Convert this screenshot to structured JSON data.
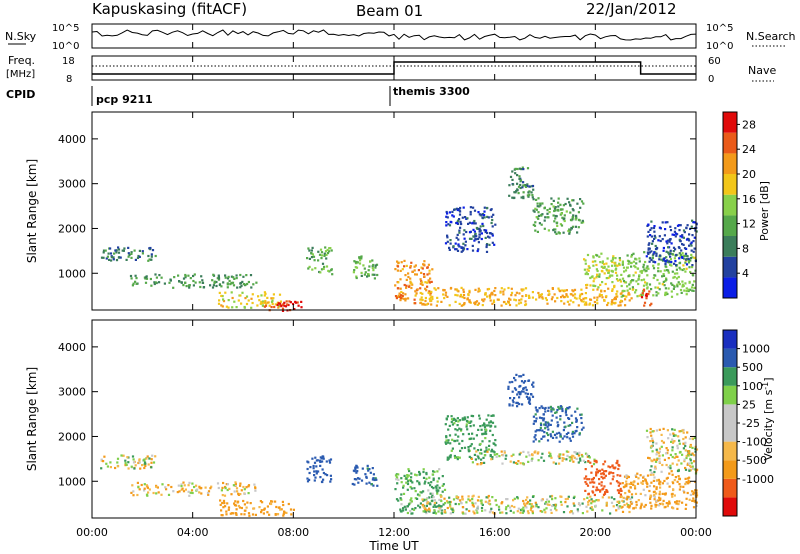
{
  "header": {
    "station": "Kapuskasing (fitACF)",
    "beam": "Beam 01",
    "date": "22/Jan/2012"
  },
  "noise_panel": {
    "left_label": "N.Sky",
    "right_label": "N.Search",
    "left_ticks": [
      "10^5",
      "10^0"
    ],
    "right_ticks": [
      "10^5",
      "10^0"
    ]
  },
  "freq_panel": {
    "left_label": "Freq.",
    "left_unit": "[MHz]",
    "left_ticks": [
      "18",
      "8"
    ],
    "right_label": "Nave",
    "right_ticks": [
      "60",
      "0"
    ]
  },
  "cpid": {
    "label": "CPID",
    "segments": [
      {
        "name": "pcp 9211",
        "start_hour": 0
      },
      {
        "name": "themis 3300",
        "start_hour": 12
      }
    ]
  },
  "colors": {
    "power_scale": [
      "#0b1ee6",
      "#22419f",
      "#3b7d5a",
      "#55a84a",
      "#88d04a",
      "#f2c619",
      "#f39a1a",
      "#ea5a19",
      "#e00a0a"
    ],
    "velocity_scale": [
      "#e00a0a",
      "#ef5a1a",
      "#f39a1a",
      "#f5b84a",
      "#c8c8c8",
      "#c8c8c8",
      "#7fd04a",
      "#3a9a5a",
      "#2a5ab0",
      "#1a2fbf"
    ]
  },
  "chart_data": [
    {
      "type": "heatmap",
      "title": "",
      "xlabel": "Time UT",
      "ylabel": "Slant Range [km]",
      "x_ticks": [
        "00:00",
        "04:00",
        "08:00",
        "12:00",
        "16:00",
        "20:00",
        "00:00"
      ],
      "xlim_hours": [
        0,
        24
      ],
      "y_ticks": [
        1000,
        2000,
        3000,
        4000
      ],
      "ylim": [
        180,
        4600
      ],
      "colorbar": {
        "label": "Power [dB]",
        "ticks": [
          4,
          8,
          12,
          16,
          20,
          24,
          28
        ],
        "range": [
          0,
          30
        ]
      },
      "regions": [
        {
          "t": [
            0.3,
            2.5
          ],
          "r": [
            1300,
            1600
          ],
          "value": 8
        },
        {
          "t": [
            1.5,
            6.5
          ],
          "r": [
            700,
            1000
          ],
          "value": 10
        },
        {
          "t": [
            5.0,
            7.5
          ],
          "r": [
            250,
            600
          ],
          "value": 18
        },
        {
          "t": [
            6.8,
            8.3
          ],
          "r": [
            180,
            400
          ],
          "value": 27
        },
        {
          "t": [
            8.5,
            9.5
          ],
          "r": [
            1000,
            1600
          ],
          "value": 12
        },
        {
          "t": [
            10.3,
            11.3
          ],
          "r": [
            900,
            1400
          ],
          "value": 12
        },
        {
          "t": [
            12.0,
            13.5
          ],
          "r": [
            300,
            1300
          ],
          "value": 22
        },
        {
          "t": [
            13.0,
            21.5
          ],
          "r": [
            300,
            700
          ],
          "value": 20
        },
        {
          "t": [
            14.0,
            16.0
          ],
          "r": [
            1500,
            2500
          ],
          "value": 5
        },
        {
          "t": [
            16.5,
            17.5
          ],
          "r": [
            2700,
            3400
          ],
          "value": 9
        },
        {
          "t": [
            17.5,
            19.5
          ],
          "r": [
            1900,
            2700
          ],
          "value": 11
        },
        {
          "t": [
            19.5,
            21.0
          ],
          "r": [
            700,
            1500
          ],
          "value": 16
        },
        {
          "t": [
            21.0,
            24.0
          ],
          "r": [
            500,
            1500
          ],
          "value": 14
        },
        {
          "t": [
            21.8,
            22.2
          ],
          "r": [
            300,
            700
          ],
          "value": 27
        },
        {
          "t": [
            22.0,
            24.0
          ],
          "r": [
            1200,
            2200
          ],
          "value": 5
        }
      ]
    },
    {
      "type": "heatmap",
      "title": "",
      "xlabel": "Time UT",
      "ylabel": "Slant Range [km]",
      "x_ticks": [
        "00:00",
        "04:00",
        "08:00",
        "12:00",
        "16:00",
        "20:00",
        "00:00"
      ],
      "xlim_hours": [
        0,
        24
      ],
      "y_ticks": [
        1000,
        2000,
        3000,
        4000
      ],
      "ylim": [
        180,
        4600
      ],
      "colorbar": {
        "label": "Velocity [m s^-1]",
        "ticks": [
          1000,
          500,
          100,
          25,
          -25,
          -100,
          -500,
          -1000
        ]
      },
      "regions": [
        {
          "t": [
            0.3,
            2.5
          ],
          "r": [
            1300,
            1600
          ],
          "value": 0
        },
        {
          "t": [
            1.5,
            6.5
          ],
          "r": [
            700,
            1000
          ],
          "value": -60
        },
        {
          "t": [
            5.0,
            8.0
          ],
          "r": [
            250,
            600
          ],
          "value": -200
        },
        {
          "t": [
            8.5,
            9.5
          ],
          "r": [
            1000,
            1600
          ],
          "value": 700
        },
        {
          "t": [
            10.3,
            11.3
          ],
          "r": [
            900,
            1400
          ],
          "value": 600
        },
        {
          "t": [
            12.0,
            14.0
          ],
          "r": [
            300,
            1300
          ],
          "value": 150
        },
        {
          "t": [
            13.0,
            21.5
          ],
          "r": [
            300,
            700
          ],
          "value": 0
        },
        {
          "t": [
            14.0,
            16.0
          ],
          "r": [
            1500,
            2500
          ],
          "value": 200
        },
        {
          "t": [
            16.5,
            17.5
          ],
          "r": [
            2700,
            3400
          ],
          "value": 700
        },
        {
          "t": [
            17.5,
            19.5
          ],
          "r": [
            1900,
            2700
          ],
          "value": 600
        },
        {
          "t": [
            15.0,
            20.0
          ],
          "r": [
            1400,
            1700
          ],
          "value": 0
        },
        {
          "t": [
            19.5,
            21.0
          ],
          "r": [
            700,
            1500
          ],
          "value": -700
        },
        {
          "t": [
            21.0,
            24.0
          ],
          "r": [
            400,
            1200
          ],
          "value": -150
        },
        {
          "t": [
            22.0,
            24.0
          ],
          "r": [
            1200,
            2200
          ],
          "value": 0
        }
      ]
    }
  ]
}
